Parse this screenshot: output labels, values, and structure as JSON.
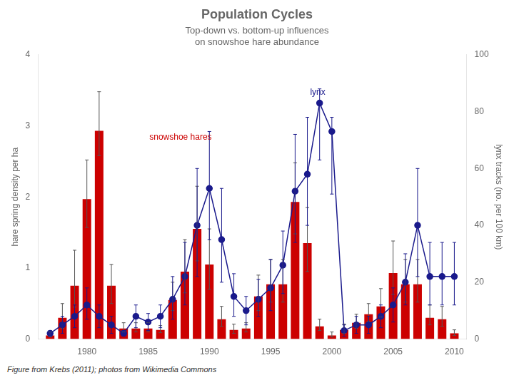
{
  "chart_data": {
    "type": "bar",
    "title": "Population Cycles",
    "subtitle": [
      "Top-down vs. bottom-up influences",
      "on snowshoe hare abundance"
    ],
    "caption": "Figure from Krebs (2011); photos from Wikimedia Commons",
    "x": [
      1977,
      1978,
      1979,
      1980,
      1981,
      1982,
      1983,
      1984,
      1985,
      1986,
      1987,
      1988,
      1989,
      1990,
      1991,
      1992,
      1993,
      1994,
      1995,
      1996,
      1997,
      1998,
      1999,
      2000,
      2001,
      2002,
      2003,
      2004,
      2005,
      2006,
      2007,
      2008,
      2009,
      2010
    ],
    "series": [
      {
        "type": "bar",
        "color": "#CC0000",
        "values": [
          0.05,
          0.3,
          0.75,
          1.97,
          2.93,
          0.75,
          0.15,
          0.15,
          0.15,
          0.13,
          0.55,
          0.95,
          1.55,
          1.05,
          0.28,
          0.13,
          0.15,
          0.6,
          0.77,
          0.77,
          1.93,
          1.35,
          0.18,
          0.05,
          0.13,
          0.23,
          0.35,
          0.46,
          0.93,
          0.77,
          0.77,
          0.3,
          0.28,
          0.08
        ],
        "error_low": [
          0.02,
          0.15,
          0.3,
          0.4,
          0.35,
          0.25,
          0.05,
          0.05,
          0.05,
          0.04,
          0.15,
          0.3,
          0.45,
          0.35,
          0.1,
          0.05,
          0.05,
          0.2,
          0.25,
          0.25,
          0.45,
          0.4,
          0.06,
          0.02,
          0.05,
          0.08,
          0.1,
          0.15,
          0.3,
          0.25,
          0.25,
          0.1,
          0.1,
          0.03
        ],
        "error_high": [
          0.05,
          0.2,
          0.5,
          0.55,
          0.55,
          0.3,
          0.08,
          0.08,
          0.08,
          0.06,
          0.25,
          0.45,
          0.6,
          0.5,
          0.18,
          0.08,
          0.08,
          0.3,
          0.35,
          0.35,
          0.55,
          0.5,
          0.1,
          0.05,
          0.08,
          0.12,
          0.15,
          0.25,
          0.45,
          0.35,
          0.35,
          0.18,
          0.18,
          0.05
        ]
      },
      {
        "type": "line",
        "axis": "y2",
        "color": "#1a1a8c",
        "marker": "circle",
        "line_style": "solid",
        "values": [
          2,
          5,
          8,
          12,
          8,
          5,
          2,
          8,
          6,
          8,
          14,
          22,
          40,
          53,
          35,
          15,
          10,
          14,
          18,
          26,
          52,
          58,
          83,
          73,
          3,
          5,
          5,
          8,
          12,
          20,
          40,
          22,
          22,
          22
        ],
        "error_low": [
          1,
          3,
          4,
          5,
          4,
          3,
          1,
          4,
          3,
          4,
          7,
          10,
          18,
          18,
          15,
          7,
          5,
          6,
          8,
          10,
          18,
          18,
          20,
          22,
          2,
          3,
          3,
          4,
          6,
          8,
          18,
          10,
          10,
          10
        ],
        "error_high": [
          1,
          3,
          4,
          6,
          4,
          3,
          1,
          4,
          3,
          4,
          8,
          12,
          20,
          20,
          18,
          8,
          5,
          7,
          10,
          12,
          20,
          20,
          5,
          5,
          2,
          3,
          3,
          4,
          6,
          10,
          20,
          12,
          12,
          12
        ]
      }
    ],
    "annotations": [
      {
        "text": "snowshoe hares",
        "color": "#CC0000"
      },
      {
        "text": "lynx",
        "color": "#1a1a8c"
      }
    ],
    "xlim": [
      1976,
      2011
    ],
    "xticks": [
      1980,
      1985,
      1990,
      1995,
      2000,
      2005,
      2010
    ],
    "ylim": [
      0,
      4
    ],
    "yticks": [
      0,
      1,
      2,
      3,
      4
    ],
    "y2lim": [
      0,
      100
    ],
    "y2ticks": [
      0,
      20,
      40,
      60,
      80,
      100
    ],
    "ylabel": "hare spring density per ha",
    "y2label": "lynx tracks (no. per 100 km)",
    "grid": false
  }
}
